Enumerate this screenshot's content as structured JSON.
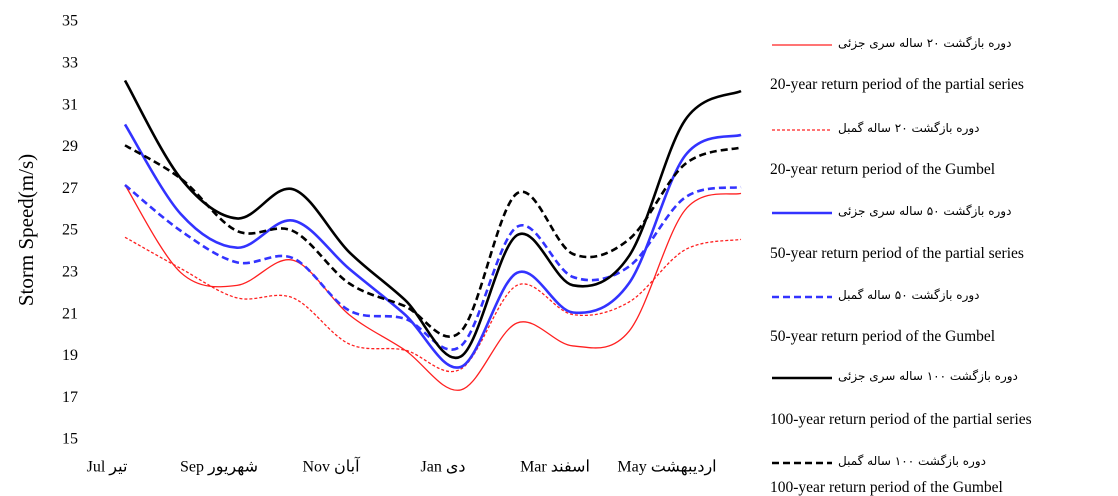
{
  "chart_data": {
    "type": "line",
    "y_label": "Storm Speed(m/s)",
    "categories": [
      "Jul تیر",
      null,
      "Sep شهریور",
      null,
      "Nov آبان",
      null,
      "Jan دی",
      null,
      "Mar اسفند",
      null,
      "May اردیبهشت",
      null
    ],
    "ylim": [
      15,
      35
    ],
    "yticks": [
      15,
      17,
      19,
      21,
      23,
      25,
      27,
      29,
      31,
      33,
      35
    ],
    "grid": false,
    "legend": "right",
    "series": [
      {
        "name": "دوره بازگشت ۲۰ ساله سری جزئی",
        "name_en": "20-year return period of the partial series",
        "color": "#ff2020",
        "dash": false,
        "width": 1.3,
        "values": [
          27.2,
          23.0,
          22.4,
          23.6,
          21.0,
          19.3,
          17.4,
          20.6,
          19.5,
          20.2,
          26.0,
          26.8
        ]
      },
      {
        "name": "دوره بازگشت ۲۰ ساله گمبل",
        "name_en": "20-year return period of the Gumbel",
        "color": "#ff2020",
        "dash": true,
        "width": 1.3,
        "values": [
          24.7,
          23.2,
          21.8,
          21.8,
          19.6,
          19.3,
          18.4,
          22.4,
          21.0,
          21.6,
          24.1,
          24.6
        ]
      },
      {
        "name": "دوره بازگشت ۵۰ ساله سری جزئی",
        "name_en": "50-year return period of the partial series",
        "color": "#3333ff",
        "dash": false,
        "width": 2.6,
        "values": [
          30.1,
          25.8,
          24.2,
          25.5,
          23.2,
          21.0,
          18.5,
          23.0,
          21.1,
          22.5,
          28.6,
          29.6
        ]
      },
      {
        "name": "دوره بازگشت ۵۰ ساله گمبل",
        "name_en": "50-year return period of the Gumbel",
        "color": "#3333ff",
        "dash": true,
        "width": 2.6,
        "values": [
          27.2,
          25.0,
          23.5,
          23.7,
          21.2,
          20.8,
          19.5,
          25.2,
          22.8,
          23.3,
          26.6,
          27.1
        ]
      },
      {
        "name": "دوره بازگشت ۱۰۰ ساله سری جزئی",
        "name_en": "100-year return period of the partial series",
        "color": "#000000",
        "dash": false,
        "width": 2.6,
        "values": [
          32.2,
          27.5,
          25.6,
          27.0,
          24.0,
          21.7,
          19.0,
          24.8,
          22.4,
          23.8,
          30.3,
          31.7
        ]
      },
      {
        "name": "دوره بازگشت ۱۰۰ ساله گمبل",
        "name_en": "100-year return period of the Gumbel",
        "color": "#000000",
        "dash": true,
        "width": 2.6,
        "values": [
          29.1,
          27.5,
          25.0,
          25.0,
          22.5,
          21.4,
          20.2,
          26.8,
          23.9,
          24.6,
          28.2,
          29.0
        ]
      }
    ]
  }
}
